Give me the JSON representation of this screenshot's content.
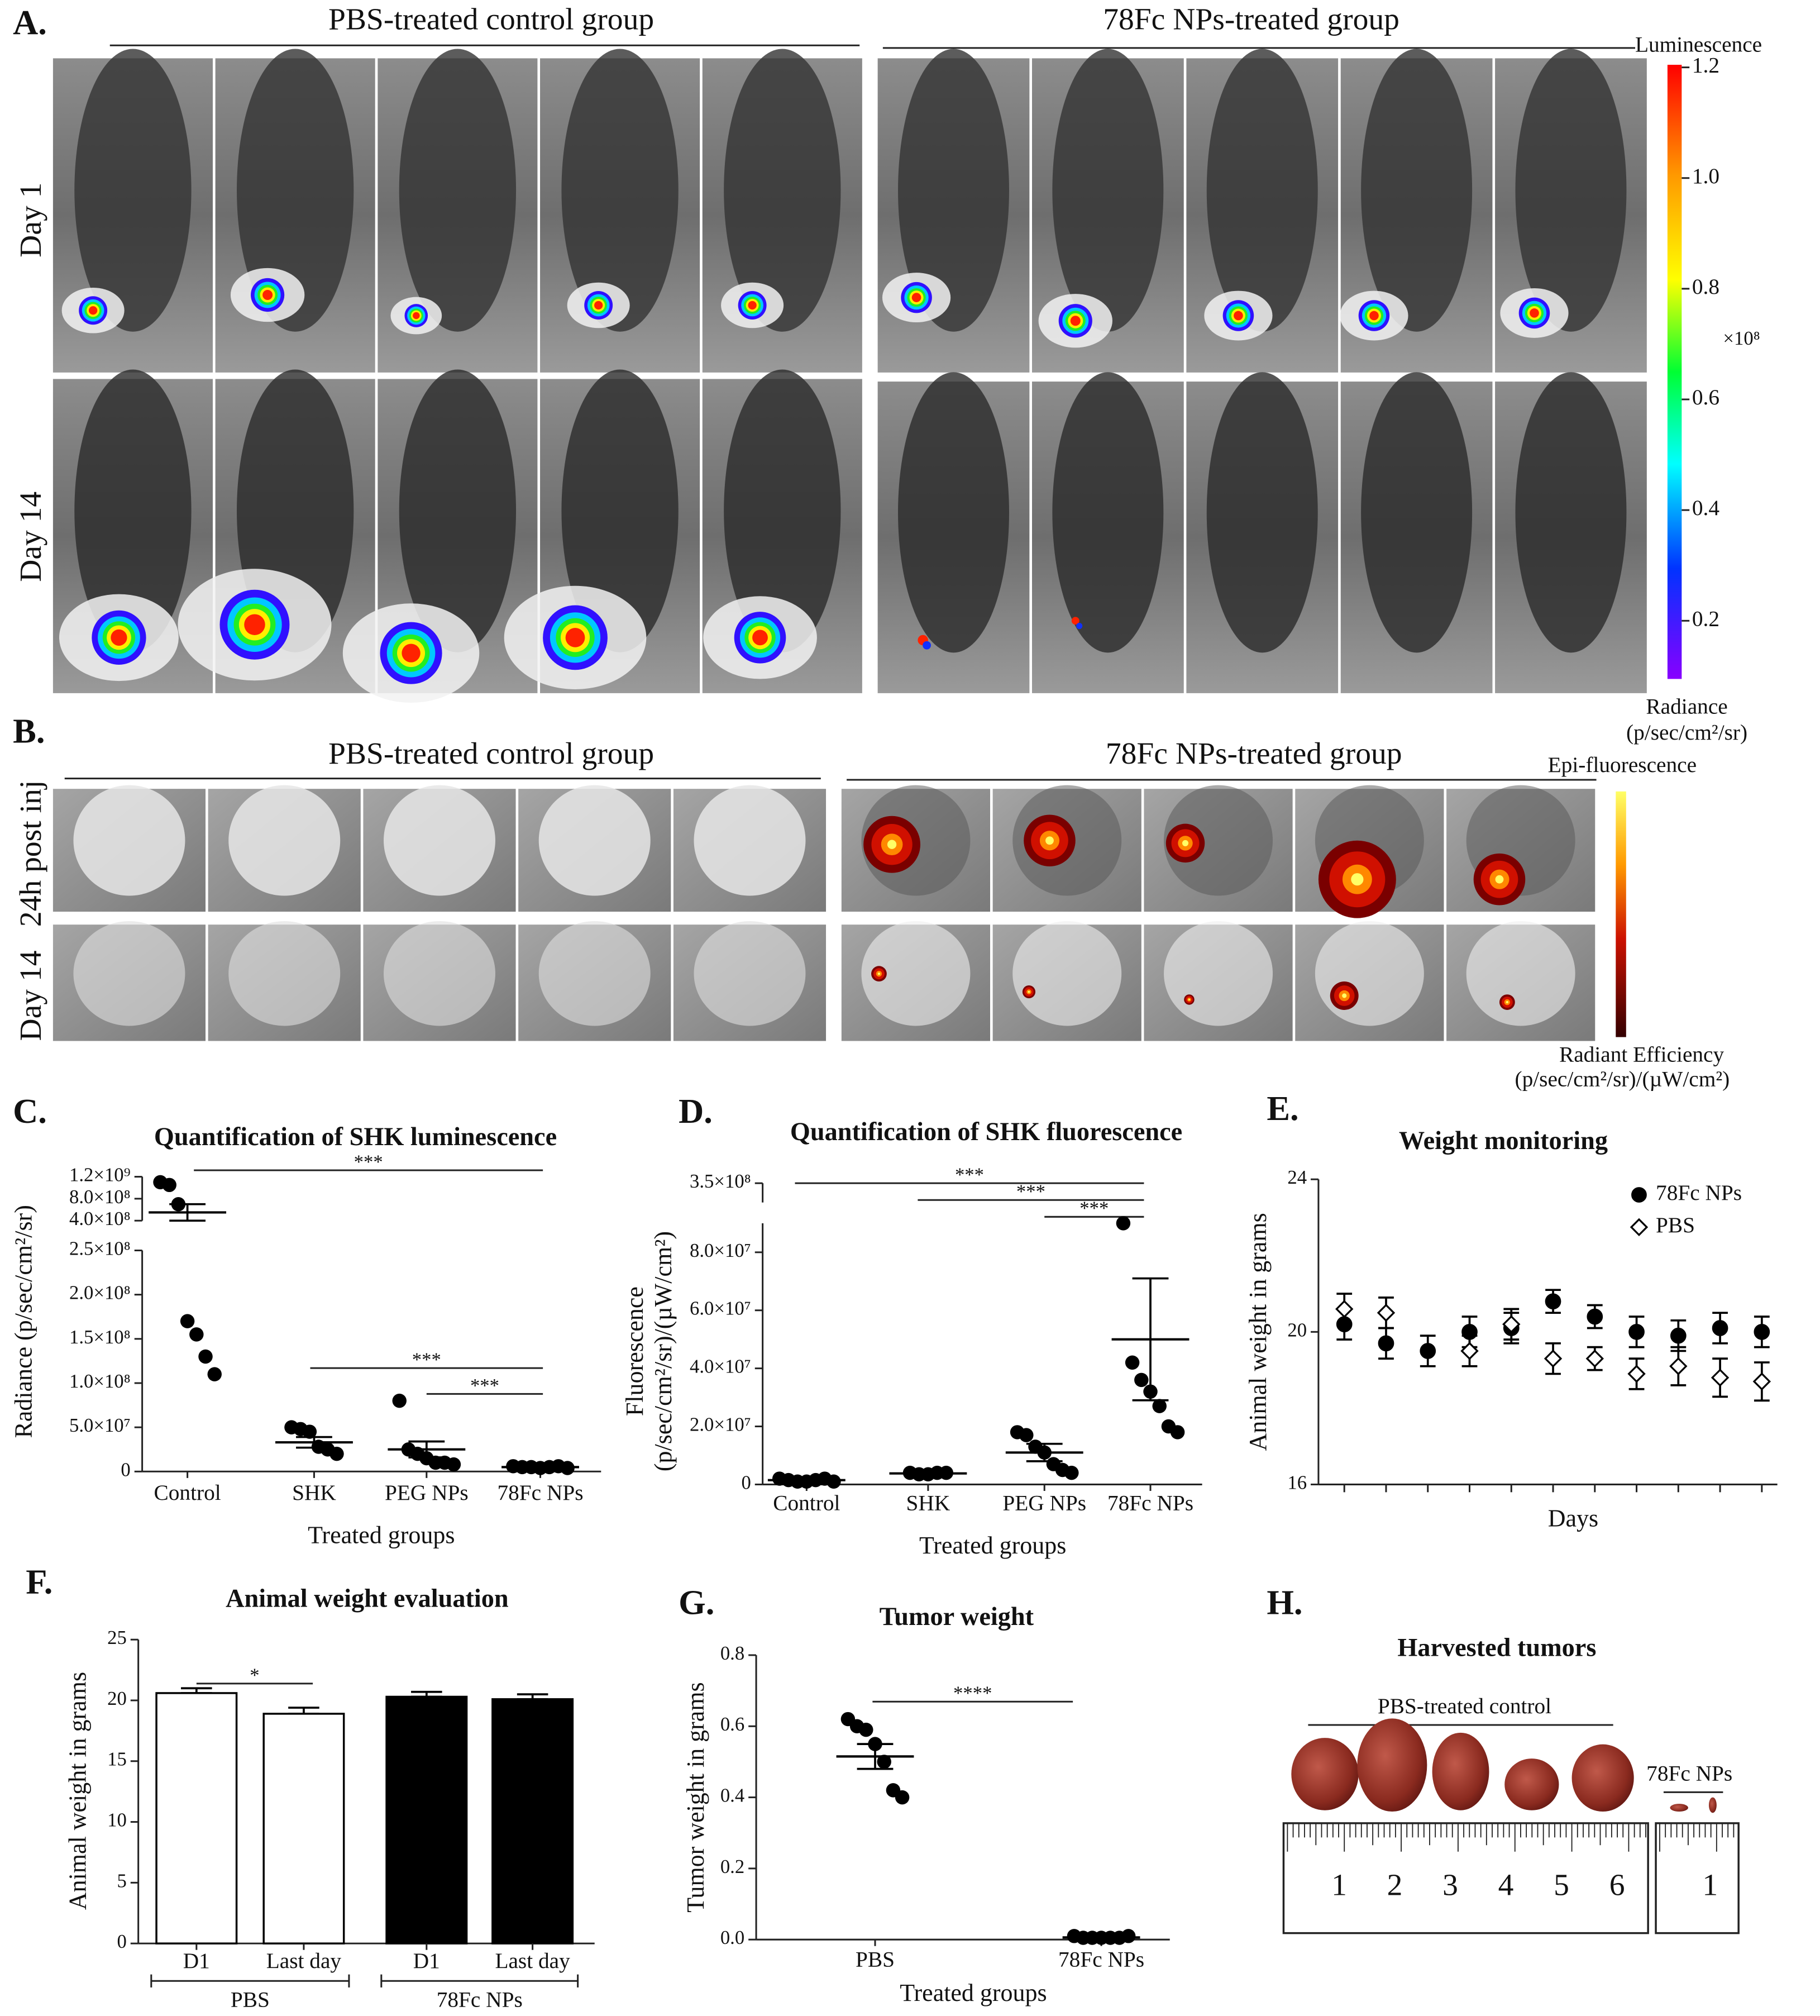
{
  "panel_a": {
    "label": "A.",
    "groups": [
      "PBS-treated control group",
      "78Fc NPs-treated group"
    ],
    "rows": [
      "Day 1",
      "Day 14"
    ],
    "colorbar": {
      "title": "Luminescence",
      "ticks": [
        "1.2",
        "1.0",
        "0.8",
        "0.6",
        "0.4",
        "0.2"
      ],
      "multiplier": "×10⁸",
      "unit": [
        "Radiance",
        "(p/sec/cm²/sr)"
      ]
    }
  },
  "panel_b": {
    "label": "B.",
    "groups": [
      "PBS-treated control group",
      "78Fc NPs-treated group"
    ],
    "rows": [
      "24h post inj",
      "Day 14"
    ],
    "colorbar": {
      "title": "Epi-fluorescence",
      "unit": [
        "Radiant Efficiency",
        "(p/sec/cm²/sr)/(µW/cm²)"
      ]
    }
  },
  "panel_h": {
    "label": "H.",
    "title": "Harvested tumors",
    "groups": [
      "PBS-treated control",
      "78Fc NPs"
    ],
    "ruler_labels": [
      [
        1,
        2,
        3,
        4,
        5,
        6
      ],
      [
        1
      ]
    ]
  },
  "chart_data": [
    {
      "type": "dot",
      "label": "C.",
      "title": "Quantification of SHK luminescence",
      "ylabel": [
        "Radiance (p/sec/cm²/sr)"
      ],
      "xlabel": "Treated groups",
      "categories": [
        "Control",
        "SHK",
        "PEG NPs",
        "78Fc NPs"
      ],
      "points": [
        [
          1100000000.0,
          1050000000.0,
          700000000.0,
          170000000.0,
          155000000.0,
          130000000.0,
          110000000.0
        ],
        [
          50000000.0,
          48000000.0,
          45000000.0,
          28000000.0,
          25000000.0,
          20000000.0
        ],
        [
          80000000.0,
          25000000.0,
          20000000.0,
          15000000.0,
          10000000.0,
          10000000.0,
          8000000.0
        ],
        [
          6000000.0,
          5000000.0,
          5000000.0,
          4000000.0,
          5000000.0,
          6000000.0,
          4000000.0
        ]
      ],
      "means": [
        550000000.0,
        33000000.0,
        25000000.0,
        5000000.0
      ],
      "errors": [
        150000000.0,
        6000000.0,
        9000000.0,
        1000000.0
      ],
      "color": "#000000",
      "ylim": [
        0,
        1200000000.0
      ],
      "ybreak": [
        250000000.0,
        400000000.0
      ],
      "yticks": [
        0,
        {
          "value": 50000000.0,
          "label": "5.0×10⁷"
        },
        {
          "value": 100000000.0,
          "label": "1.0×10⁸"
        },
        {
          "value": 150000000.0,
          "label": "1.5×10⁸"
        },
        {
          "value": 200000000.0,
          "label": "2.0×10⁸"
        },
        {
          "value": 250000000.0,
          "label": "2.5×10⁸"
        },
        {
          "value": 400000000.0,
          "label": "4.0×10⁸"
        },
        {
          "value": 800000000.0,
          "label": "8.0×10⁸"
        },
        {
          "value": 1200000000.0,
          "label": "1.2×10⁹"
        }
      ],
      "annotations": [
        "***",
        "***",
        "***"
      ]
    },
    {
      "type": "dot",
      "label": "D.",
      "title": "Quantification of SHK fluorescence",
      "ylabel": [
        "Fluorescence",
        "(p/sec/cm²/sr)/(µW/cm²)"
      ],
      "xlabel": "Treated groups",
      "categories": [
        "Control",
        "SHK",
        "PEG NPs",
        "78Fc NPs"
      ],
      "points": [
        [
          2000000.0,
          1500000.0,
          1000000.0,
          1000000.0,
          1500000.0,
          2000000.0,
          1000000.0
        ],
        [
          4000000.0,
          3500000.0,
          3500000.0,
          4000000.0,
          4000000.0
        ],
        [
          18000000.0,
          17000000.0,
          13000000.0,
          11000000.0,
          7000000.0,
          5000000.0,
          4000000.0
        ],
        [
          90000000.0,
          42000000.0,
          36000000.0,
          32000000.0,
          27000000.0,
          20000000.0,
          18000000.0
        ]
      ],
      "means": [
        1500000.0,
        3800000.0,
        11000000.0,
        50000000.0
      ],
      "errors": [
        300000.0,
        200000.0,
        3000000.0,
        21000000.0
      ],
      "color": "#000000",
      "ylim": [
        0,
        350000000.0
      ],
      "ybreak": [
        90000000.0,
        300000000.0
      ],
      "yticks": [
        0,
        {
          "value": 20000000.0,
          "label": "2.0×10⁷"
        },
        {
          "value": 40000000.0,
          "label": "4.0×10⁷"
        },
        {
          "value": 60000000.0,
          "label": "6.0×10⁷"
        },
        {
          "value": 80000000.0,
          "label": "8.0×10⁷"
        },
        {
          "value": 350000000.0,
          "label": "3.5×10⁸"
        }
      ],
      "annotations": [
        "***",
        "***",
        "***"
      ]
    },
    {
      "type": "errline",
      "label": "E.",
      "title": "Weight monitoring",
      "ylabel": [
        "Animal weight in grams"
      ],
      "xlabel": "Days",
      "categories": [
        null,
        null,
        null,
        null,
        null,
        null,
        null,
        null,
        null,
        null,
        null
      ],
      "series": [
        {
          "name": "78Fc NPs",
          "color": "#000000",
          "marker": "circle",
          "filled": true,
          "values": [
            20.2,
            19.7,
            19.5,
            20.0,
            20.1,
            20.8,
            20.4,
            20.0,
            19.9,
            20.1,
            20.0
          ],
          "errors": [
            0.4,
            0.4,
            0.4,
            0.4,
            0.4,
            0.3,
            0.3,
            0.4,
            0.4,
            0.4,
            0.4
          ]
        },
        {
          "name": "PBS",
          "color": "#000000",
          "marker": "diamond",
          "filled": false,
          "values": [
            20.6,
            20.5,
            null,
            19.5,
            20.2,
            19.3,
            19.3,
            18.9,
            19.1,
            18.8,
            18.7
          ],
          "errors": [
            0.4,
            0.4,
            null,
            0.4,
            0.4,
            0.4,
            0.3,
            0.4,
            0.5,
            0.5,
            0.5
          ]
        }
      ],
      "ylim": [
        16,
        24
      ],
      "yticks": [
        16,
        20,
        24
      ],
      "legend": "upper right"
    },
    {
      "type": "bar",
      "label": "F.",
      "title": "Animal weight evaluation",
      "ylabel": [
        "Animal weight in grams"
      ],
      "categories": [
        "D1",
        "Last day",
        "D1",
        "Last day"
      ],
      "groups": [
        "PBS",
        "78Fc NPs"
      ],
      "values": [
        20.6,
        18.9,
        20.3,
        20.1
      ],
      "errors": [
        0.4,
        0.5,
        0.4,
        0.4
      ],
      "colors": [
        "#ffffff",
        "#ffffff",
        "#000000",
        "#000000"
      ],
      "ylim": [
        0,
        25
      ],
      "yticks": [
        0,
        5,
        10,
        15,
        20,
        25
      ],
      "annotations": [
        "*"
      ]
    },
    {
      "type": "dot",
      "label": "G.",
      "title": "Tumor weight",
      "ylabel": [
        "Tumor weight in grams"
      ],
      "xlabel": "Treated groups",
      "categories": [
        "PBS",
        "78Fc NPs"
      ],
      "points": [
        [
          0.62,
          0.6,
          0.59,
          0.55,
          0.5,
          0.42,
          0.4
        ],
        [
          0.01,
          0.005,
          0.005,
          0.005,
          0.005,
          0.005,
          0.01
        ]
      ],
      "means": [
        0.515,
        0.006
      ],
      "errors": [
        0.035,
        0.002
      ],
      "color": "#000000",
      "ylim": [
        0,
        0.8
      ],
      "yticks": [
        {
          "value": 0,
          "label": "0.0"
        },
        0.2,
        0.4,
        0.6,
        0.8
      ],
      "annotations": [
        "****"
      ]
    }
  ]
}
